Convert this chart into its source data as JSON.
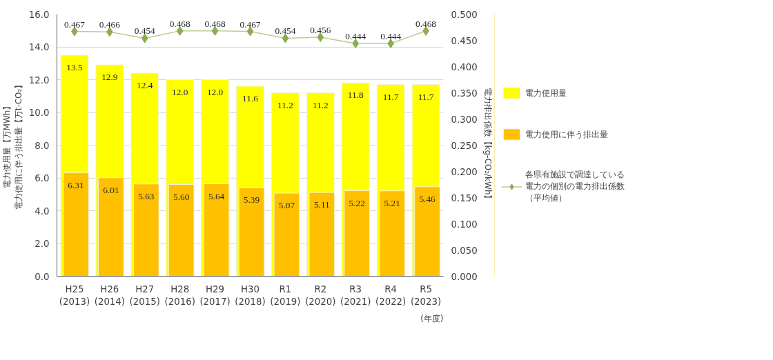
{
  "chart_data": {
    "type": "bar",
    "categories": [
      "H25\n(2013)",
      "H26\n(2014)",
      "H27\n(2015)",
      "H28\n(2016)",
      "H29\n(2017)",
      "H30\n(2018)",
      "R1\n(2019)",
      "R2\n(2020)",
      "R3\n(2021)",
      "R4\n(2022)",
      "R5\n(2023)"
    ],
    "xlabel": "(年度)",
    "ylabel": "電力使用量【万MWh】電力使用に伴う排出量【万t-CO₂】",
    "y2label": "電力排出係数【kg-CO₂/kWh】",
    "series": [
      {
        "name": "電力使用量",
        "color": "#ffff00",
        "values": [
          13.5,
          12.9,
          12.4,
          12.0,
          12.0,
          11.6,
          11.2,
          11.2,
          11.8,
          11.7,
          11.7
        ],
        "value_labels": [
          "13.5",
          "12.9",
          "12.4",
          "12.0",
          "12.0",
          "11.6",
          "11.2",
          "11.2",
          "11.8",
          "11.7",
          "11.7"
        ]
      },
      {
        "name": "電力使用に伴う排出量",
        "color": "#ffc000",
        "values": [
          6.31,
          6.01,
          5.63,
          5.6,
          5.64,
          5.39,
          5.07,
          5.11,
          5.22,
          5.21,
          5.46
        ],
        "value_labels": [
          "6.31",
          "6.01",
          "5.63",
          "5.60",
          "5.64",
          "5.39",
          "5.07",
          "5.11",
          "5.22",
          "5.21",
          "5.46"
        ]
      },
      {
        "name": "各県有施設で調達している電力の個別の電力排出係数（平均値）",
        "type": "line",
        "axis": "y2",
        "color": "#8cad4e",
        "marker": "diamond",
        "values": [
          0.467,
          0.466,
          0.454,
          0.468,
          0.468,
          0.467,
          0.454,
          0.456,
          0.444,
          0.444,
          0.468
        ],
        "value_labels": [
          "0.467",
          "0.466",
          "0.454",
          "0.468",
          "0.468",
          "0.467",
          "0.454",
          "0.456",
          "0.444",
          "0.444",
          "0.468"
        ]
      }
    ],
    "ylim": [
      0,
      16
    ],
    "yticks": [
      {
        "value": 0,
        "label": "0.0"
      },
      {
        "value": 2,
        "label": "2.0"
      },
      {
        "value": 4,
        "label": "4.0"
      },
      {
        "value": 6,
        "label": "6.0"
      },
      {
        "value": 8,
        "label": "8.0"
      },
      {
        "value": 10,
        "label": "10.0"
      },
      {
        "value": 12,
        "label": "12.0"
      },
      {
        "value": 14,
        "label": "14.0"
      },
      {
        "value": 16,
        "label": "16.0"
      }
    ],
    "y2lim": [
      0,
      0.5
    ],
    "y2ticks": [
      {
        "value": 0,
        "label": "0.000"
      },
      {
        "value": 0.05,
        "label": "0.050"
      },
      {
        "value": 0.1,
        "label": "0.100"
      },
      {
        "value": 0.15,
        "label": "0.150"
      },
      {
        "value": 0.2,
        "label": "0.200"
      },
      {
        "value": 0.25,
        "label": "0.250"
      },
      {
        "value": 0.3,
        "label": "0.300"
      },
      {
        "value": 0.35,
        "label": "0.350"
      },
      {
        "value": 0.4,
        "label": "0.400"
      },
      {
        "value": 0.45,
        "label": "0.450"
      },
      {
        "value": 0.5,
        "label": "0.500"
      }
    ],
    "grid": "y",
    "legend": "right"
  }
}
